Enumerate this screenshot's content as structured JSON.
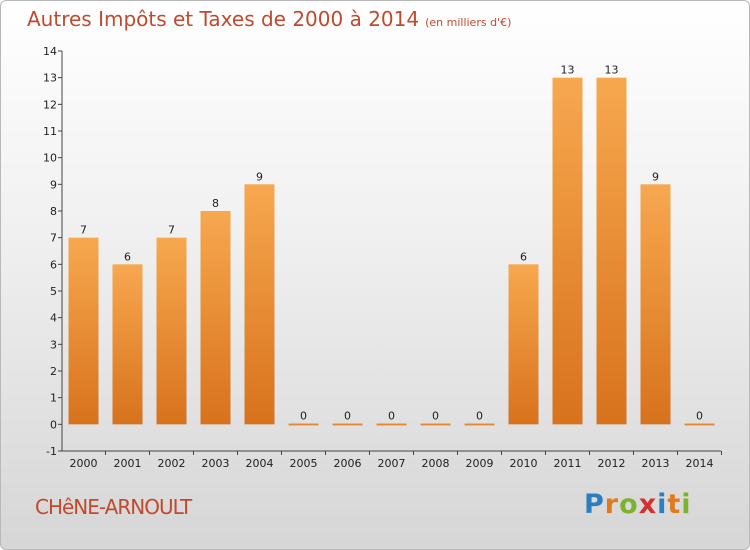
{
  "title": "Autres Impôts et Taxes de 2000 à 2014",
  "unit": "(en milliers d'€)",
  "commune": "CHêNE-ARNOULT",
  "logo": {
    "letters": [
      "P",
      "r",
      "o",
      "x",
      "i",
      "t",
      "i"
    ],
    "colors": [
      "#2b7fc1",
      "#e07a1a",
      "#7cb32a",
      "#d62f2f",
      "#2b7fc1",
      "#e07a1a",
      "#7cb32a"
    ]
  },
  "colors": {
    "bar_light": "#f7a84f",
    "bar_dark": "#d8721c",
    "title": "#c04a2d"
  },
  "chart_data": {
    "type": "bar",
    "categories": [
      "2000",
      "2001",
      "2002",
      "2003",
      "2004",
      "2005",
      "2006",
      "2007",
      "2008",
      "2009",
      "2010",
      "2011",
      "2012",
      "2013",
      "2014"
    ],
    "values": [
      7,
      6,
      7,
      8,
      9,
      0,
      0,
      0,
      0,
      0,
      6,
      13,
      13,
      9,
      0
    ],
    "ylim": [
      -1,
      14
    ],
    "yticks": [
      "-1",
      "0",
      "1",
      "2",
      "3",
      "4",
      "5",
      "6",
      "7",
      "8",
      "9",
      "10",
      "11",
      "12",
      "13",
      "14"
    ],
    "grid": false
  }
}
